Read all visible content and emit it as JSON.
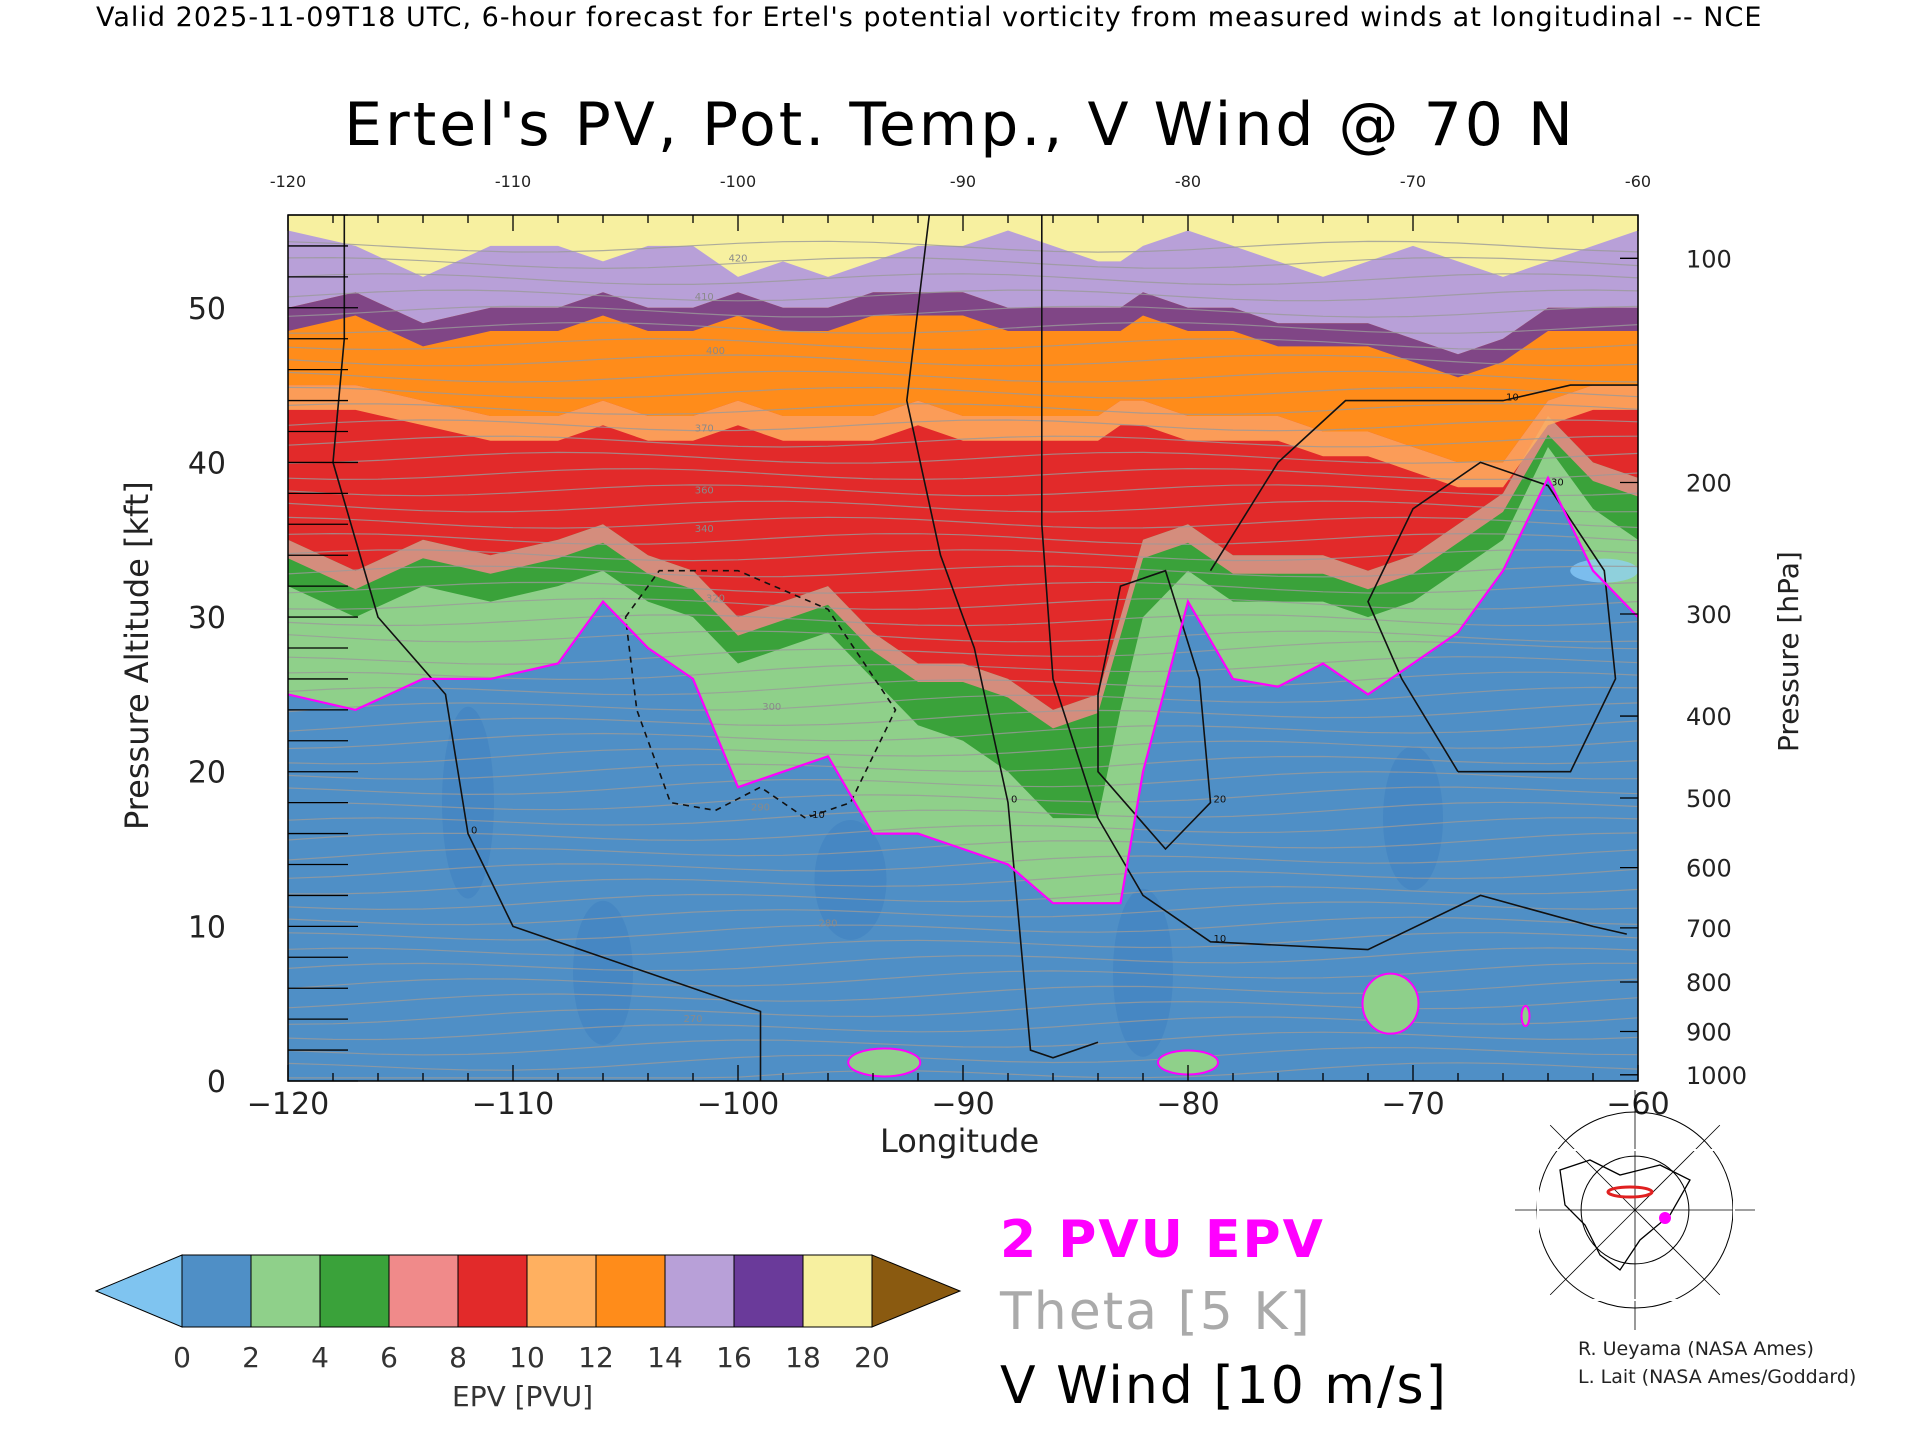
{
  "header": {
    "text": "Valid 2025-11-09T18 UTC, 6-hour forecast for Ertel's potential vorticity from measured winds at longitudinal -- NCE"
  },
  "chart_data": {
    "type": "heatmap",
    "title": "Ertel's PV, Pot. Temp., V Wind @ 70 N",
    "xlabel": "Longitude",
    "ylabel": "Pressure Altitude [kft]",
    "y2label": "Pressure [hPa]",
    "xlim": [
      -120,
      -60
    ],
    "ylim": [
      0,
      56
    ],
    "x_ticks": [
      -120,
      -110,
      -100,
      -90,
      -80,
      -70,
      -60
    ],
    "x_tick_labels": [
      "−120",
      "−110",
      "−100",
      "−90",
      "−80",
      "−70",
      "−60"
    ],
    "top_tick_labels": [
      "-120",
      "-110",
      "-100",
      "-90",
      "-80",
      "-70",
      "-60"
    ],
    "y_ticks": [
      0,
      10,
      20,
      30,
      40,
      50
    ],
    "pressure_ticks": [
      {
        "hpa": "100",
        "kft": 53.2
      },
      {
        "hpa": "200",
        "kft": 38.7
      },
      {
        "hpa": "300",
        "kft": 30.2
      },
      {
        "hpa": "400",
        "kft": 23.6
      },
      {
        "hpa": "500",
        "kft": 18.3
      },
      {
        "hpa": "600",
        "kft": 13.8
      },
      {
        "hpa": "700",
        "kft": 9.9
      },
      {
        "hpa": "800",
        "kft": 6.4
      },
      {
        "hpa": "900",
        "kft": 3.2
      },
      {
        "hpa": "1000",
        "kft": 0.4
      }
    ],
    "epv_bands": [
      {
        "pvu_range": [
          0,
          2
        ],
        "color": "#4f8fc6"
      },
      {
        "pvu_range": [
          2,
          4
        ],
        "color": "#8fd08a"
      },
      {
        "pvu_range": [
          4,
          6
        ],
        "color": "#3aa23a"
      },
      {
        "pvu_range": [
          6,
          8
        ],
        "color": "#f08a8a"
      },
      {
        "pvu_range": [
          8,
          10
        ],
        "color": "#e22a2a"
      },
      {
        "pvu_range": [
          10,
          12
        ],
        "color": "#ffb060"
      },
      {
        "pvu_range": [
          12,
          14
        ],
        "color": "#ff8c1a"
      },
      {
        "pvu_range": [
          14,
          16
        ],
        "color": "#b8a0d8"
      },
      {
        "pvu_range": [
          16,
          18
        ],
        "color": "#6a3a9a"
      },
      {
        "pvu_range": [
          18,
          20
        ],
        "color": "#f7f0a0"
      },
      {
        "pvu_range": [
          20,
          22
        ],
        "color": "#8a5a10"
      }
    ],
    "boundaries": {
      "x": [
        -120,
        -117,
        -114,
        -111,
        -108,
        -106,
        -104,
        -102,
        -100,
        -98,
        -96,
        -94,
        -92,
        -90,
        -88,
        -86,
        -84,
        -83,
        -82,
        -80,
        -78,
        -76,
        -74,
        -72,
        -70,
        -68,
        -66,
        -64,
        -62,
        -60
      ],
      "pvu2_kft": [
        25,
        24,
        26,
        26,
        27,
        31,
        28,
        26,
        19,
        20,
        21,
        16,
        16,
        15,
        14,
        11.5,
        11.5,
        11.5,
        20,
        31,
        26,
        25.5,
        27,
        25,
        27,
        29,
        33,
        39,
        33,
        30
      ],
      "pvu4_kft": [
        32,
        30,
        32,
        31,
        32,
        33,
        31,
        30,
        27,
        28,
        29,
        26,
        23,
        22,
        20,
        17,
        17,
        24,
        30,
        33,
        31,
        31,
        31,
        30,
        31,
        33,
        35,
        41,
        37,
        35
      ],
      "pvu6_kft": [
        35,
        33,
        35,
        34,
        35,
        36,
        34,
        33,
        30,
        31,
        32,
        29,
        27,
        27,
        26,
        24,
        25,
        30,
        35,
        36,
        34,
        34,
        34,
        33,
        34,
        36,
        38,
        43,
        40,
        39
      ],
      "pvu10_kft": [
        45,
        45,
        44,
        43,
        43,
        44,
        43,
        43,
        44,
        43,
        43,
        43,
        44,
        43,
        43,
        43,
        43,
        44,
        44,
        43,
        43,
        43,
        42,
        42,
        41,
        40,
        40,
        44,
        45,
        45
      ],
      "pvu14_kft": [
        50,
        51,
        49,
        50,
        50,
        51,
        50,
        50,
        51,
        50,
        50,
        51,
        51,
        51,
        50,
        50,
        50,
        50,
        51,
        50,
        50,
        49,
        49,
        49,
        48,
        47,
        48,
        50,
        50,
        50
      ],
      "pvu18_kft": [
        55,
        54,
        52,
        54,
        54,
        53,
        54,
        54,
        52,
        53,
        52,
        53,
        54,
        54,
        55,
        54,
        53,
        53,
        54,
        55,
        54,
        53,
        52,
        53,
        54,
        53,
        52,
        53,
        54,
        55
      ]
    },
    "theta_contour_labels": [
      {
        "value": "270",
        "x": -102,
        "kft": 3.8
      },
      {
        "value": "280",
        "x": -96,
        "kft": 10
      },
      {
        "value": "290",
        "x": -99,
        "kft": 17.5
      },
      {
        "value": "300",
        "x": -98.5,
        "kft": 24
      },
      {
        "value": "320",
        "x": -101,
        "kft": 31
      },
      {
        "value": "340",
        "x": -101.5,
        "kft": 35.5
      },
      {
        "value": "360",
        "x": -101.5,
        "kft": 38
      },
      {
        "value": "370",
        "x": -101.5,
        "kft": 42
      },
      {
        "value": "400",
        "x": -101,
        "kft": 47
      },
      {
        "value": "410",
        "x": -101.5,
        "kft": 50.5
      },
      {
        "value": "420",
        "x": -100,
        "kft": 53
      }
    ],
    "v_wind_contours": [
      {
        "label": "0",
        "style": "solid",
        "points": [
          [
            -117.5,
            56
          ],
          [
            -117.5,
            48
          ],
          [
            -118,
            40
          ],
          [
            -116,
            30
          ],
          [
            -113,
            25
          ],
          [
            -112,
            16
          ],
          [
            -110,
            10
          ],
          [
            -107,
            8.5
          ],
          [
            -104,
            7
          ],
          [
            -99,
            4.5
          ],
          [
            -99,
            0
          ]
        ]
      },
      {
        "label": "0",
        "style": "solid",
        "points": [
          [
            -91.5,
            56
          ],
          [
            -92.5,
            44
          ],
          [
            -91,
            34
          ],
          [
            -89.5,
            28
          ],
          [
            -88,
            18
          ],
          [
            -87.5,
            10
          ],
          [
            -87,
            2
          ],
          [
            -86,
            1.5
          ],
          [
            -84,
            2.5
          ]
        ]
      },
      {
        "label": "10",
        "style": "solid",
        "points": [
          [
            -86.5,
            56
          ],
          [
            -86.5,
            36
          ],
          [
            -86,
            26
          ],
          [
            -84,
            17
          ],
          [
            -82,
            12
          ],
          [
            -79,
            9
          ],
          [
            -72,
            8.5
          ],
          [
            -67,
            12
          ],
          [
            -62,
            10
          ],
          [
            -60.5,
            9.5
          ]
        ]
      },
      {
        "label": "10",
        "style": "solid",
        "points": [
          [
            -79,
            33
          ],
          [
            -76,
            40
          ],
          [
            -73,
            44
          ],
          [
            -66,
            44
          ],
          [
            -63,
            45
          ],
          [
            -60,
            45
          ]
        ]
      },
      {
        "label": "30",
        "style": "solid",
        "points": [
          [
            -68,
            20
          ],
          [
            -70.5,
            26
          ],
          [
            -72,
            31
          ],
          [
            -70,
            37
          ],
          [
            -67,
            40
          ],
          [
            -64,
            38.5
          ],
          [
            -61.5,
            33
          ],
          [
            -61,
            26
          ],
          [
            -63,
            20
          ],
          [
            -68,
            20
          ]
        ]
      },
      {
        "label": "20",
        "style": "solid",
        "points": [
          [
            -84,
            25
          ],
          [
            -83,
            32
          ],
          [
            -81,
            33
          ],
          [
            -79.5,
            26
          ],
          [
            -79,
            18
          ],
          [
            -81,
            15
          ],
          [
            -84,
            20
          ],
          [
            -84,
            25
          ]
        ]
      },
      {
        "label": "-10",
        "style": "dashed",
        "points": [
          [
            -105,
            30
          ],
          [
            -103.5,
            33
          ],
          [
            -100,
            33
          ],
          [
            -96,
            30.5
          ],
          [
            -93,
            24
          ],
          [
            -95,
            18
          ],
          [
            -97,
            17
          ],
          [
            -99,
            19
          ],
          [
            -101,
            17.5
          ],
          [
            -103,
            18
          ],
          [
            -104.5,
            24
          ],
          [
            -105,
            30
          ]
        ]
      }
    ],
    "colorbar": {
      "label": "EPV [PVU]",
      "ticks": [
        "0",
        "2",
        "4",
        "6",
        "8",
        "10",
        "12",
        "14",
        "16",
        "18",
        "20"
      ],
      "under_color": "#7fc4f0",
      "over_color": "#8a5a10"
    },
    "legend": {
      "epv_line": "2 PVU EPV",
      "theta_line": "Theta [5 K]",
      "wind_line": "V Wind [10 m/s]",
      "epv_color": "#ff00ff",
      "theta_color": "#aaaaaa"
    },
    "inset_map": {
      "marker_color": "#ff00ff",
      "section_color": "#e02020"
    }
  },
  "credits": [
    "R. Ueyama (NASA Ames)",
    "L. Lait (NASA Ames/Goddard)"
  ]
}
